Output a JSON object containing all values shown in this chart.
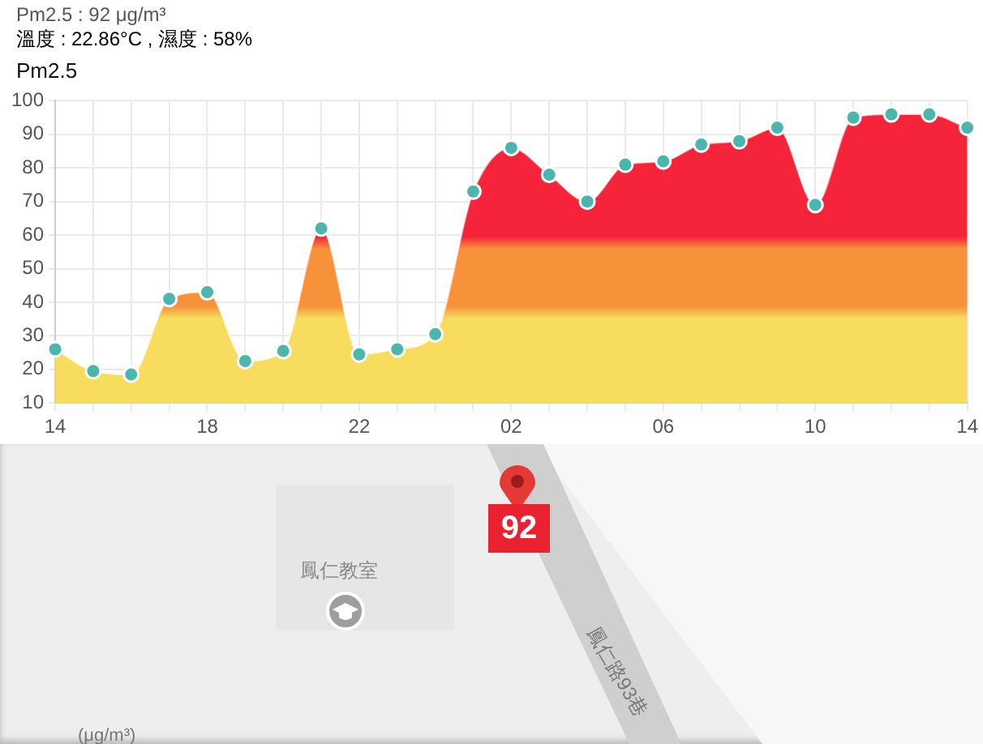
{
  "chart_data": {
    "type": "area",
    "title": "Pm2.5",
    "categories": [
      "14",
      null,
      null,
      null,
      "18",
      null,
      null,
      null,
      "22",
      null,
      null,
      null,
      "02",
      null,
      null,
      null,
      "06",
      null,
      null,
      null,
      "10",
      null,
      null,
      null,
      "14"
    ],
    "series": [
      {
        "color": "#4db6ac",
        "values": [
          26,
          19.5,
          18.5,
          41,
          43,
          22.5,
          25.5,
          62,
          24.5,
          26,
          30.5,
          73,
          86,
          78,
          70,
          81,
          82,
          87,
          88,
          92,
          69,
          95,
          96,
          96,
          92
        ]
      }
    ],
    "ylim": [
      10,
      100
    ],
    "yticks": [
      10,
      20,
      30,
      40,
      50,
      60,
      70,
      80,
      90,
      100
    ],
    "grid": true,
    "legend": false,
    "marker": "circle",
    "annotations": [
      "Pm2.5 : 92 μg/m³",
      "溫度 : 22.86°C , 濕度 : 58%",
      "92",
      "鳳仁教室",
      "鳳仁路93巷",
      "(μg/m³)"
    ]
  }
}
